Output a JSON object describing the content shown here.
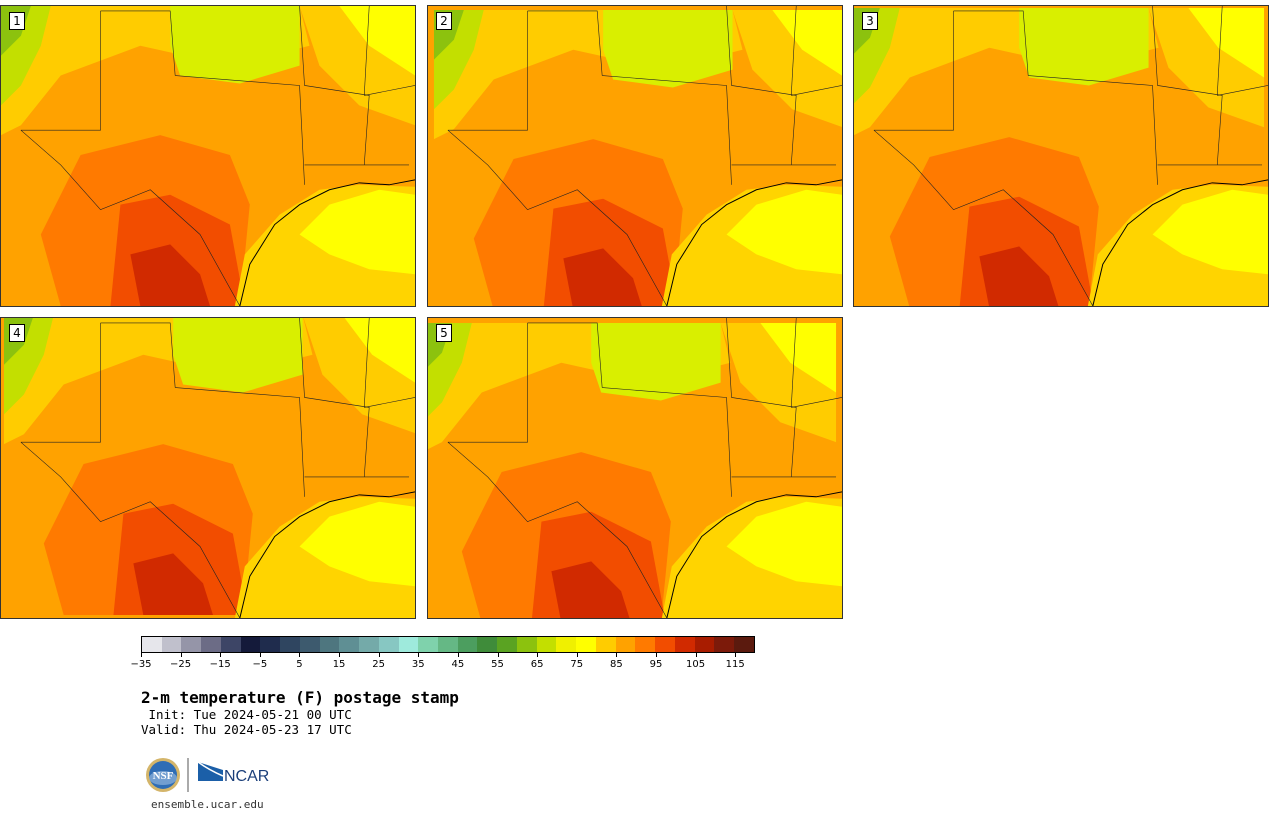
{
  "panels": [
    {
      "label": "1",
      "variant": 0
    },
    {
      "label": "2",
      "variant": 1
    },
    {
      "label": "3",
      "variant": 2
    },
    {
      "label": "4",
      "variant": 3
    },
    {
      "label": "5",
      "variant": 4
    }
  ],
  "colorbar": {
    "colors": [
      "#e6e6eb",
      "#c0c0cc",
      "#9595a8",
      "#6c6c86",
      "#3d4566",
      "#141a3a",
      "#1f2c4d",
      "#2f4560",
      "#3d5a6e",
      "#4e767f",
      "#5f8f94",
      "#74aaa9",
      "#87c7c2",
      "#9eeadc",
      "#7fd2ac",
      "#65b885",
      "#4c9e5f",
      "#3f8c3a",
      "#5aa322",
      "#8cc20e",
      "#c3df00",
      "#f0f000",
      "#ffff00",
      "#ffcc00",
      "#ffa200",
      "#ff7a00",
      "#f24d00",
      "#d12a00",
      "#a81c00",
      "#7c1a0a",
      "#5b1a0e"
    ],
    "ticks": [
      "−35",
      "−25",
      "−15",
      "−5",
      "5",
      "15",
      "25",
      "35",
      "45",
      "55",
      "65",
      "75",
      "85",
      "95",
      "105",
      "115"
    ]
  },
  "title": "2-m temperature (F) postage stamp",
  "init": " Init: Tue 2024-05-21 00 UTC",
  "valid": "Valid: Thu 2024-05-23 17 UTC",
  "logos": {
    "nsf": "NSF",
    "ncar": "NCAR"
  },
  "site": "ensemble.ucar.edu"
}
